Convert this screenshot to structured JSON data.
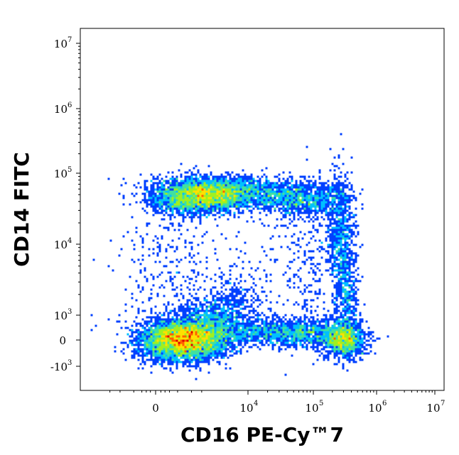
{
  "chart_data": {
    "type": "heatmap",
    "subtype": "flow-cytometry-density-plot",
    "xlabel": "CD16 PE-Cy™7",
    "ylabel": "CD14 FITC",
    "x_scale": "biexponential",
    "y_scale": "biexponential",
    "x_ticks": [
      {
        "value": 0,
        "base": "0",
        "exp": ""
      },
      {
        "value": 10000,
        "base": "10",
        "exp": "4"
      },
      {
        "value": 100000,
        "base": "10",
        "exp": "5"
      },
      {
        "value": 1000000,
        "base": "10",
        "exp": "6"
      },
      {
        "value": 10000000,
        "base": "10",
        "exp": "7"
      }
    ],
    "y_ticks": [
      {
        "value": -1000,
        "base": "-10",
        "exp": "3"
      },
      {
        "value": 0,
        "base": "0",
        "exp": ""
      },
      {
        "value": 1000,
        "base": "10",
        "exp": "3"
      },
      {
        "value": 10000,
        "base": "10",
        "exp": "4"
      },
      {
        "value": 100000,
        "base": "10",
        "exp": "5"
      },
      {
        "value": 1000000,
        "base": "10",
        "exp": "6"
      },
      {
        "value": 10000000,
        "base": "10",
        "exp": "7"
      }
    ],
    "populations": [
      {
        "x": 300,
        "y": 0,
        "density": "peak"
      },
      {
        "x": 300000,
        "y": 0,
        "density": "high"
      },
      {
        "x": 600,
        "y": 45000,
        "density": "high"
      },
      {
        "x": 30000,
        "y": 40000,
        "density": "medium"
      },
      {
        "x": 30000,
        "y": 200,
        "density": "medium"
      }
    ],
    "colormap": [
      "#0000c8",
      "#0040ff",
      "#00c0ff",
      "#40e0a0",
      "#a0f020",
      "#ffe000",
      "#ff6000",
      "#e00000"
    ],
    "grid": false,
    "legend": "none"
  }
}
